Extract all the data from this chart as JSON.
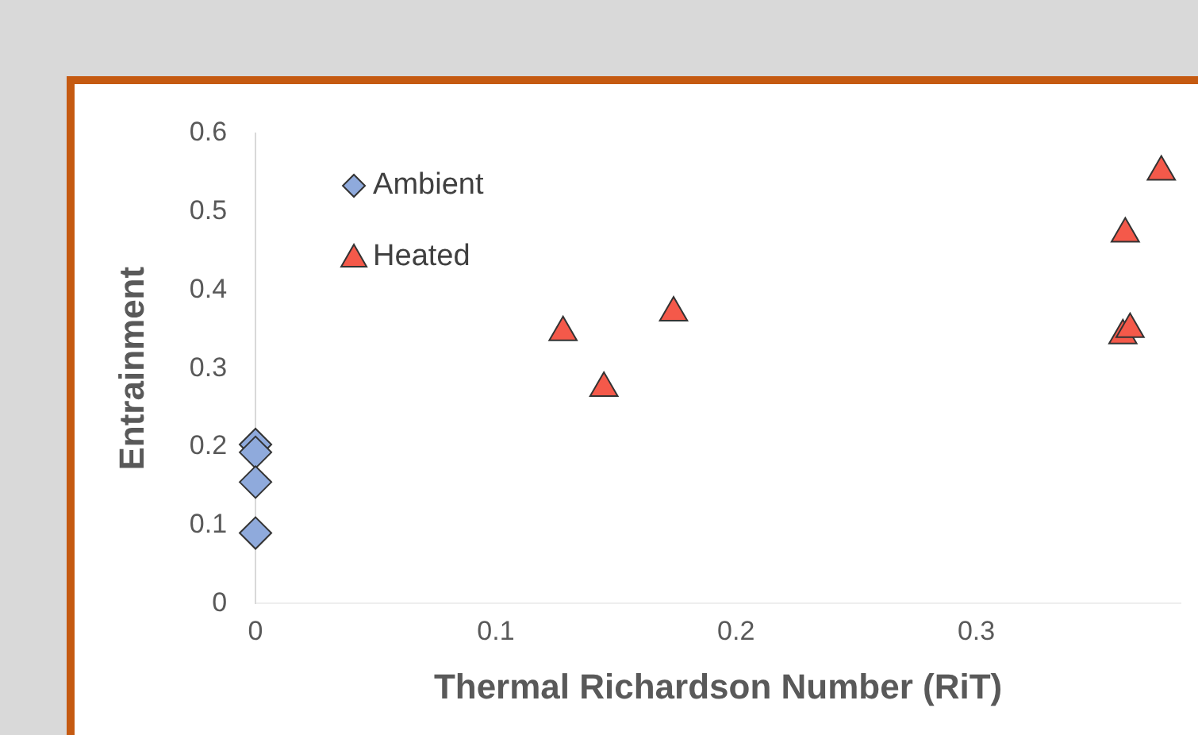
{
  "chart_data": {
    "type": "scatter",
    "xlabel": "Thermal Richardson Number (RiT)",
    "ylabel": "Entrainment",
    "xlim": [
      0,
      0.385
    ],
    "xticks": [
      0,
      0.1,
      0.2,
      0.3
    ],
    "ylim": [
      0,
      0.6
    ],
    "yticks": [
      0,
      0.1,
      0.2,
      0.3,
      0.4,
      0.5,
      0.6
    ],
    "grid": false,
    "legend": "top left",
    "series": [
      {
        "name": "Ambient",
        "color": "#8faadc",
        "marker": "diamond",
        "x": [
          0,
          0,
          0,
          0
        ],
        "values": [
          0.203,
          0.193,
          0.155,
          0.09
        ]
      },
      {
        "name": "Heated",
        "color": "#f4594a",
        "marker": "triangle",
        "x": [
          0.128,
          0.145,
          0.174,
          0.362,
          0.361,
          0.364,
          0.377
        ],
        "values": [
          0.346,
          0.275,
          0.371,
          0.472,
          0.342,
          0.35,
          0.551
        ]
      }
    ]
  }
}
